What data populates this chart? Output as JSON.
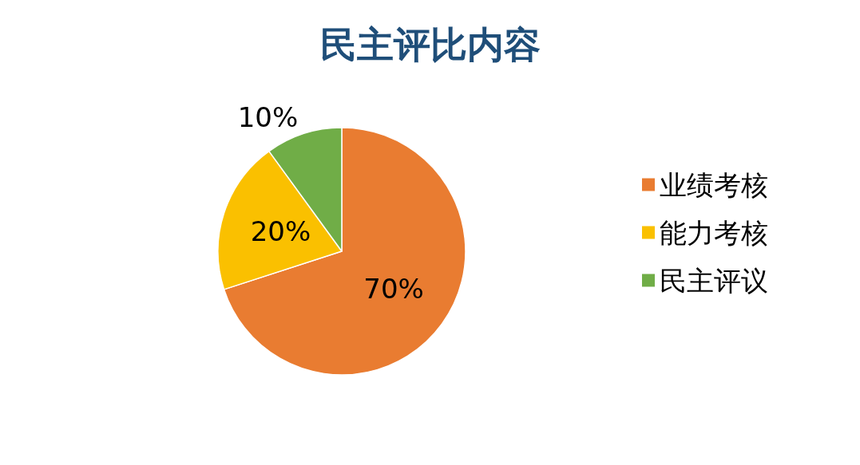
{
  "chart_data": {
    "type": "pie",
    "title": "民主评比内容",
    "categories": [
      "业绩考核",
      "能力考核",
      "民主评议"
    ],
    "values": [
      70,
      20,
      10
    ],
    "colors": [
      "#e97c31",
      "#fac000",
      "#70ad47"
    ],
    "value_labels": [
      "70%",
      "20%",
      "10%"
    ],
    "legend": "right"
  }
}
